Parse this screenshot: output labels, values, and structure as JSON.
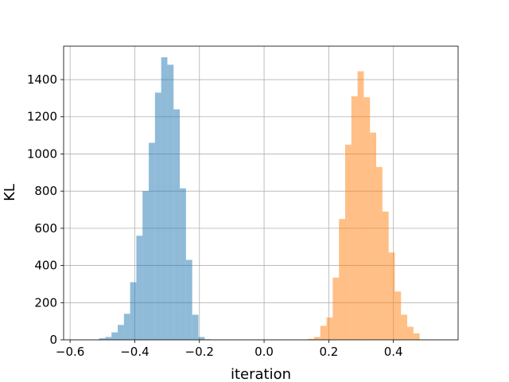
{
  "chart_data": {
    "type": "bar",
    "subtype": "histogram",
    "xlabel": "iteration",
    "ylabel": "KL",
    "xlim": [
      -0.62,
      0.6
    ],
    "ylim": [
      0,
      1580
    ],
    "xticks": [
      -0.6,
      -0.4,
      -0.2,
      0.0,
      0.2,
      0.4
    ],
    "xtick_labels": [
      "−0.6",
      "−0.4",
      "−0.2",
      "0.0",
      "0.2",
      "0.4"
    ],
    "yticks": [
      0,
      200,
      400,
      600,
      800,
      1000,
      1200,
      1400
    ],
    "ytick_labels": [
      "0",
      "200",
      "400",
      "600",
      "800",
      "1000",
      "1200",
      "1400"
    ],
    "grid": true,
    "bin_width": 0.0192,
    "series": [
      {
        "color": "#1f77b4",
        "opacity": 0.5,
        "bins_left": [
          -0.5103,
          -0.4911,
          -0.4719,
          -0.4527,
          -0.4335,
          -0.4143,
          -0.3951,
          -0.3759,
          -0.3567,
          -0.3375,
          -0.3183,
          -0.2991,
          -0.2799,
          -0.2607,
          -0.2415,
          -0.2223,
          -0.2031,
          -0.1839
        ],
        "values": [
          8,
          15,
          40,
          80,
          140,
          310,
          560,
          800,
          1060,
          1330,
          1520,
          1480,
          1240,
          815,
          430,
          135,
          15,
          3
        ]
      },
      {
        "color": "#ff7f0e",
        "opacity": 0.5,
        "bins_left": [
          0.1355,
          0.1547,
          0.1739,
          0.1931,
          0.2123,
          0.2315,
          0.2507,
          0.2699,
          0.2891,
          0.3083,
          0.3275,
          0.3467,
          0.3659,
          0.3851,
          0.4043,
          0.4235,
          0.4427,
          0.4619
        ],
        "values": [
          5,
          15,
          75,
          120,
          335,
          650,
          1050,
          1310,
          1445,
          1305,
          1115,
          930,
          690,
          470,
          260,
          135,
          70,
          35
        ]
      }
    ]
  }
}
